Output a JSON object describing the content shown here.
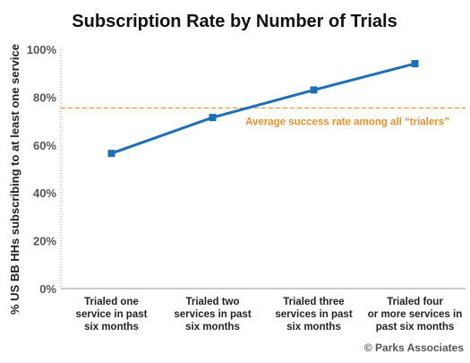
{
  "chart_data": {
    "type": "line",
    "title": "Subscription Rate by Number of Trials",
    "xlabel": "",
    "ylabel": "% US BB HHs subscribing to at least one service",
    "ylim": [
      0,
      100
    ],
    "yticks": [
      "0%",
      "20%",
      "40%",
      "60%",
      "80%",
      "100%"
    ],
    "categories": [
      [
        "Trialed one",
        "service in past",
        "six months"
      ],
      [
        "Trialed two",
        "services in past",
        "six months"
      ],
      [
        "Trialed three",
        "services in past",
        "six months"
      ],
      [
        "Trialed four",
        "or more services in",
        "past six months"
      ]
    ],
    "series": [
      {
        "values": [
          56.5,
          71.5,
          83,
          94
        ],
        "color": "#1f6fb5",
        "marker": "square"
      }
    ],
    "reference_line": {
      "value": 75.5,
      "label": "Average success rate among all “trialers”",
      "color": "#e8912d",
      "style": "dashed"
    },
    "grid": false,
    "legend": "none"
  },
  "credit": "© Parks Associates"
}
